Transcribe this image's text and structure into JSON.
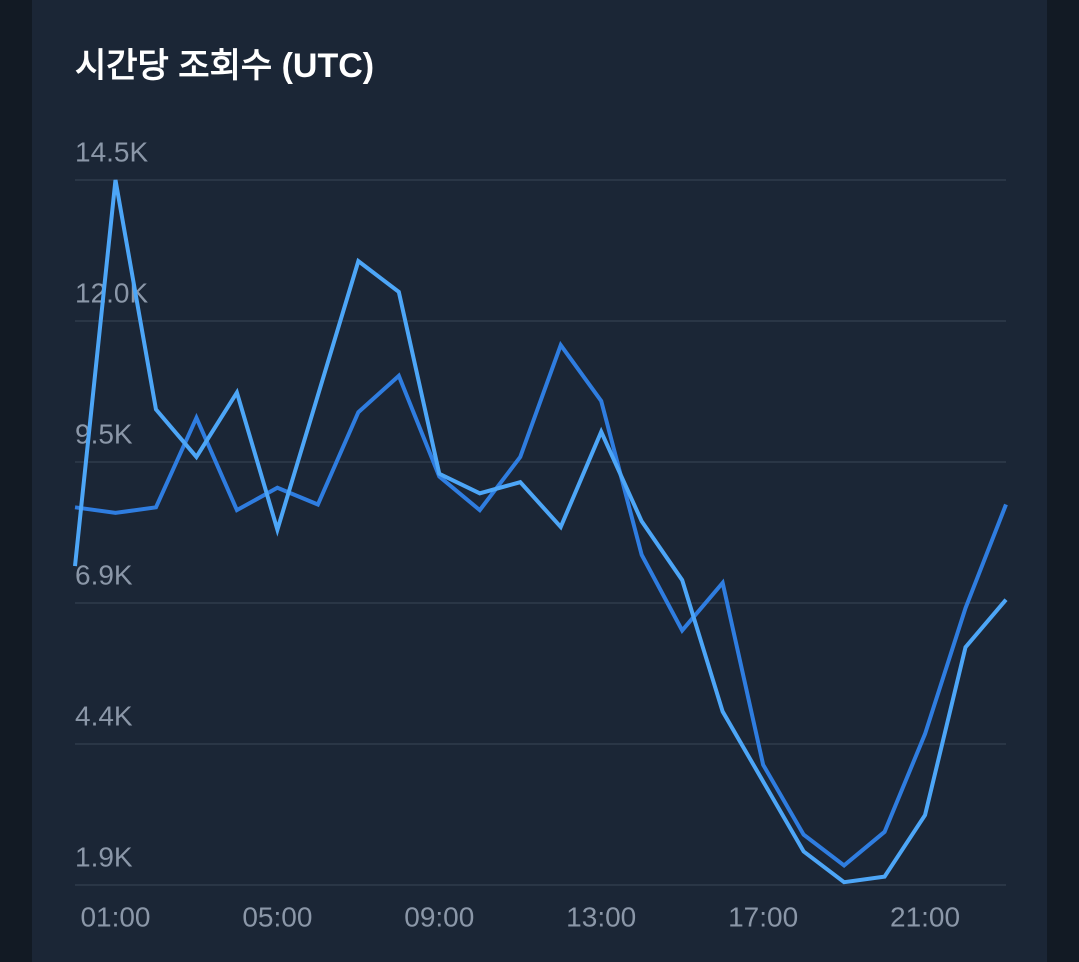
{
  "chart_data": {
    "type": "line",
    "title": "시간당 조회수 (UTC)",
    "categories": [
      null,
      "01:00",
      null,
      null,
      null,
      "05:00",
      null,
      null,
      null,
      "09:00",
      null,
      null,
      null,
      "13:00",
      null,
      null,
      null,
      "17:00",
      null,
      null,
      null,
      "21:00",
      null,
      null
    ],
    "series": [
      {
        "color": "#2f7de0",
        "values": [
          8650,
          8550,
          8650,
          10250,
          8600,
          9000,
          8700,
          10350,
          11000,
          9200,
          8600,
          9550,
          11550,
          10550,
          7800,
          6450,
          7300,
          4050,
          2800,
          2250,
          2850,
          4600,
          6850,
          8700
        ]
      },
      {
        "color": "#4da6f7",
        "values": [
          7600,
          14500,
          10400,
          9550,
          10700,
          8250,
          10650,
          13050,
          12500,
          9250,
          8900,
          9100,
          8300,
          10000,
          8400,
          7350,
          5000,
          3750,
          2500,
          1950,
          2050,
          3150,
          6150,
          7000
        ]
      }
    ],
    "ylim": [
      1900,
      14500
    ],
    "yticks": [
      {
        "value": 1900,
        "label": "1.9K"
      },
      {
        "value": 4420,
        "label": "4.4K"
      },
      {
        "value": 6940,
        "label": "6.9K"
      },
      {
        "value": 9460,
        "label": "9.5K"
      },
      {
        "value": 11980,
        "label": "12.0K"
      },
      {
        "value": 14500,
        "label": "14.5K"
      }
    ],
    "grid": true
  }
}
